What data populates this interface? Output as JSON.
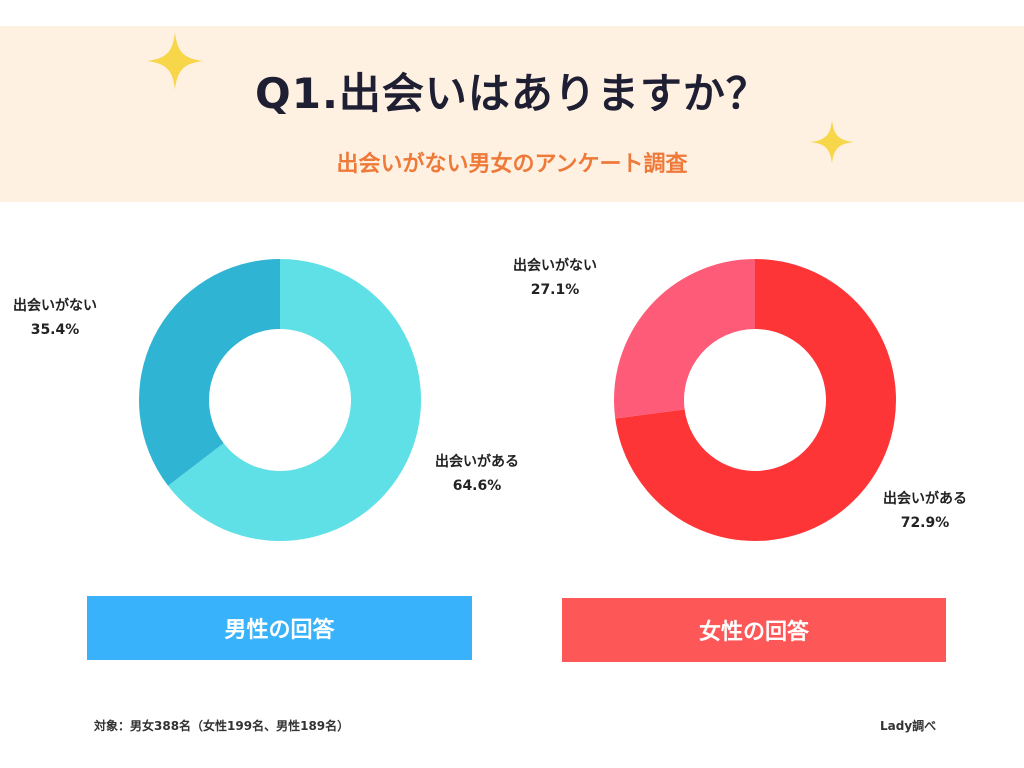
{
  "header": {
    "title": "Q1.出会いはありますか？",
    "subtitle": "出会いがない男女のアンケート調査",
    "background": "#fff1e2",
    "sparkle_color": "#f7d64a"
  },
  "chart_data": [
    {
      "type": "pie",
      "title": "男性の回答",
      "slices": [
        {
          "label": "出会いがない",
          "value": 35.4,
          "value_label": "35.4%",
          "color": "#2fb5d3"
        },
        {
          "label": "出会いがある",
          "value": 64.6,
          "value_label": "64.6%",
          "color": "#5ee0e6"
        }
      ],
      "panel_color": "#38b3fb"
    },
    {
      "type": "pie",
      "title": "女性の回答",
      "slices": [
        {
          "label": "出会いがない",
          "value": 27.1,
          "value_label": "27.1%",
          "color": "#fe5b79"
        },
        {
          "label": "出会いがある",
          "value": 72.9,
          "value_label": "72.9%",
          "color": "#fe3536"
        }
      ],
      "panel_color": "#fe5757"
    }
  ],
  "footer": {
    "note": "対象：男女388名（女性199名、男性189名）",
    "source": "Lady調べ"
  }
}
